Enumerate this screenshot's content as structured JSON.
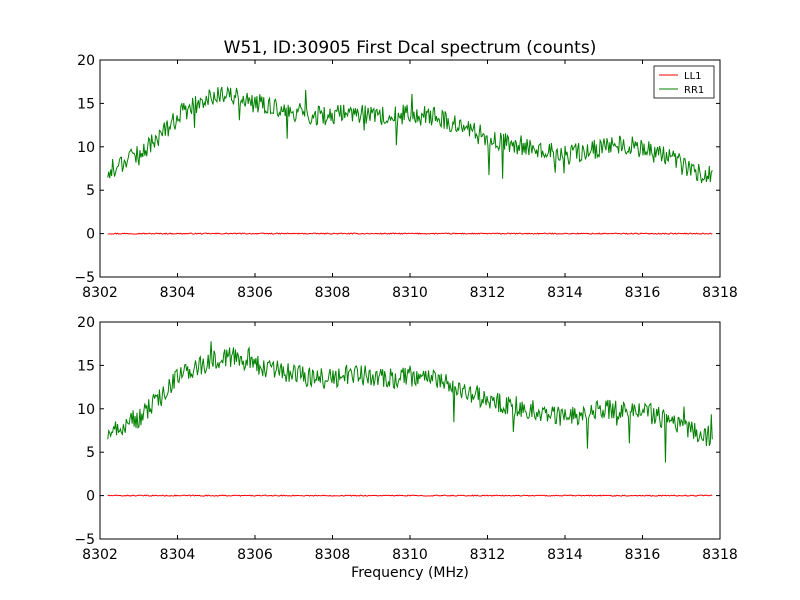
{
  "figure": {
    "title": "W51, ID:30905 First Dcal spectrum (counts)",
    "xlabel": "Frequency (MHz)"
  },
  "chart_data": [
    {
      "type": "line",
      "title": "W51, ID:30905 First Dcal spectrum (counts)",
      "xlabel": "",
      "ylabel": "",
      "xlim": [
        8302,
        8318
      ],
      "ylim": [
        -5,
        20
      ],
      "xticks": [
        "8302",
        "8304",
        "8306",
        "8308",
        "8310",
        "8312",
        "8314",
        "8316",
        "8318"
      ],
      "yticks": [
        "−5",
        "0",
        "5",
        "10",
        "15",
        "20"
      ],
      "grid": false,
      "legend": {
        "position": "top-right",
        "entries": [
          "LL1",
          "RR1"
        ]
      },
      "x": [
        8302.2,
        8302.5,
        8303.0,
        8303.5,
        8304.0,
        8304.5,
        8305.0,
        8305.5,
        8306.0,
        8306.5,
        8307.0,
        8307.5,
        8308.0,
        8308.5,
        8309.0,
        8309.5,
        8310.0,
        8310.5,
        8311.0,
        8311.5,
        8312.0,
        8312.5,
        8313.0,
        8313.5,
        8314.0,
        8314.5,
        8315.0,
        8315.5,
        8316.0,
        8316.5,
        8317.0,
        8317.5,
        8317.8
      ],
      "series": [
        {
          "name": "LL1",
          "color": "#ff0000",
          "values": [
            0.0,
            0.0,
            0.0,
            0.0,
            0.0,
            0.0,
            0.0,
            0.0,
            0.0,
            0.0,
            0.0,
            0.0,
            0.0,
            0.0,
            0.0,
            0.0,
            0.0,
            0.0,
            0.0,
            0.0,
            0.0,
            0.0,
            0.0,
            0.0,
            0.0,
            0.0,
            0.0,
            0.0,
            0.0,
            0.0,
            0.0,
            0.0,
            0.0
          ]
        },
        {
          "name": "RR1",
          "color": "#008000",
          "values": [
            7.0,
            8.0,
            9.0,
            11.0,
            13.5,
            15.0,
            15.8,
            16.0,
            15.0,
            14.5,
            14.0,
            13.5,
            13.5,
            14.0,
            13.8,
            13.5,
            13.8,
            13.5,
            13.0,
            12.0,
            11.0,
            10.5,
            10.0,
            9.5,
            9.0,
            9.5,
            10.0,
            10.2,
            9.8,
            9.0,
            8.0,
            7.0,
            6.8
          ]
        }
      ]
    },
    {
      "type": "line",
      "title": "",
      "xlabel": "Frequency (MHz)",
      "ylabel": "",
      "xlim": [
        8302,
        8318
      ],
      "ylim": [
        -5,
        20
      ],
      "xticks": [
        "8302",
        "8304",
        "8306",
        "8308",
        "8310",
        "8312",
        "8314",
        "8316",
        "8318"
      ],
      "yticks": [
        "−5",
        "0",
        "5",
        "10",
        "15",
        "20"
      ],
      "grid": false,
      "x": [
        8302.2,
        8302.5,
        8303.0,
        8303.5,
        8304.0,
        8304.5,
        8305.0,
        8305.5,
        8306.0,
        8306.5,
        8307.0,
        8307.5,
        8308.0,
        8308.5,
        8309.0,
        8309.5,
        8310.0,
        8310.5,
        8311.0,
        8311.5,
        8312.0,
        8312.5,
        8313.0,
        8313.5,
        8314.0,
        8314.5,
        8315.0,
        8315.5,
        8316.0,
        8316.5,
        8317.0,
        8317.5,
        8317.8
      ],
      "series": [
        {
          "name": "LL1",
          "color": "#ff0000",
          "values": [
            0.0,
            0.0,
            0.0,
            0.0,
            0.0,
            0.0,
            0.0,
            0.0,
            0.0,
            0.0,
            0.0,
            0.0,
            0.0,
            0.0,
            0.0,
            0.0,
            0.0,
            0.0,
            0.0,
            0.0,
            0.0,
            0.0,
            0.0,
            0.0,
            0.0,
            0.0,
            0.0,
            0.0,
            0.0,
            0.0,
            0.0,
            0.0,
            0.0
          ]
        },
        {
          "name": "RR1",
          "color": "#008000",
          "values": [
            7.0,
            8.0,
            9.0,
            11.0,
            13.5,
            15.0,
            15.6,
            16.0,
            15.0,
            14.5,
            14.0,
            13.5,
            13.5,
            14.0,
            13.8,
            13.5,
            13.8,
            13.5,
            13.0,
            12.0,
            11.0,
            10.5,
            10.0,
            9.5,
            9.0,
            9.5,
            10.0,
            10.0,
            9.8,
            9.0,
            8.0,
            7.0,
            6.8
          ]
        }
      ]
    }
  ]
}
